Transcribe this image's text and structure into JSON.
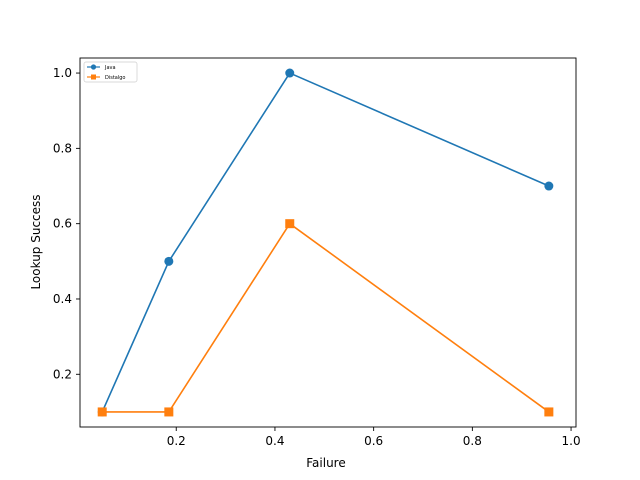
{
  "chart_data": {
    "type": "line",
    "title": "",
    "xlabel": "Failure",
    "ylabel": "Lookup Success",
    "xlim": [
      0.005,
      1.01
    ],
    "ylim": [
      0.06,
      1.04
    ],
    "xticks": [
      0.2,
      0.4,
      0.6,
      0.8,
      1.0
    ],
    "xtick_labels": [
      "0.2",
      "0.4",
      "0.6",
      "0.8",
      "1.0"
    ],
    "yticks": [
      0.2,
      0.4,
      0.6,
      0.8,
      1.0
    ],
    "ytick_labels": [
      "0.2",
      "0.4",
      "0.6",
      "0.8",
      "1.0"
    ],
    "grid": false,
    "legend_position": "top-left",
    "series": [
      {
        "name": "Java",
        "marker": "circle",
        "color": "#1f77b4",
        "x": [
          0.05,
          0.185,
          0.43,
          0.955
        ],
        "y": [
          0.1,
          0.5,
          1.0,
          0.7
        ]
      },
      {
        "name": "Distalgo",
        "marker": "square",
        "color": "#ff7f0e",
        "x": [
          0.05,
          0.185,
          0.43,
          0.955
        ],
        "y": [
          0.1,
          0.1,
          0.6,
          0.1
        ]
      }
    ]
  }
}
